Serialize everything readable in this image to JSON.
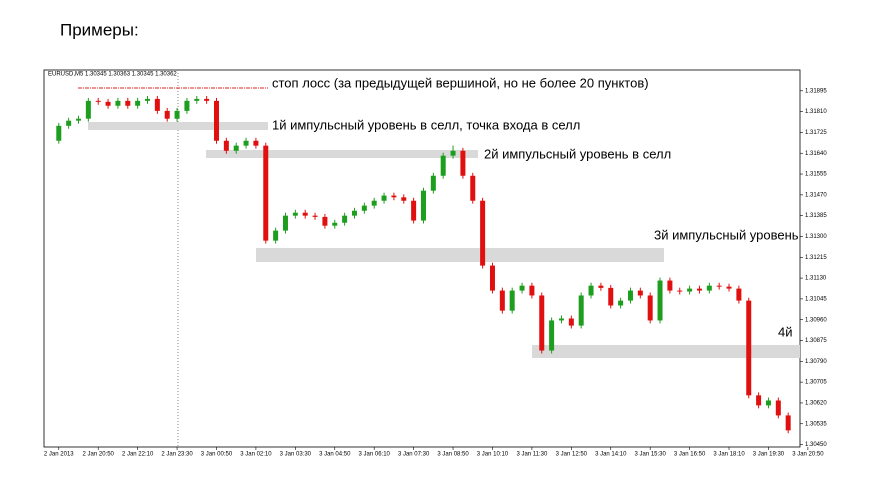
{
  "heading": "Примеры:",
  "chart_data": {
    "type": "candlestick",
    "symbol_label": "EURUSD,M5  1.30345 1.30363 1.30345 1.30362",
    "annotations": [
      "стоп лосс (за предыдущей вершиной, но не более 20 пунктов)",
      "1й импульсный уровень в селл, точка входа в селл",
      "2й импульсный уровень в селл",
      "3й импульсный уровень",
      "4й"
    ],
    "up_color": "#1e9e1e",
    "down_color": "#e01010",
    "xlim": [
      -1.5,
      75.2
    ],
    "xticks": [
      {
        "value": 0,
        "label": "2 Jan 2013"
      },
      {
        "value": 4,
        "label": "2 Jan 20:50"
      },
      {
        "value": 8,
        "label": "2 Jan 22:10"
      },
      {
        "value": 12,
        "label": "2 Jan 23:30"
      },
      {
        "value": 16,
        "label": "3 Jan 00:50"
      },
      {
        "value": 20,
        "label": "3 Jan 02:10"
      },
      {
        "value": 24,
        "label": "3 Jan 03:30"
      },
      {
        "value": 28,
        "label": "3 Jan 04:50"
      },
      {
        "value": 32,
        "label": "3 Jan 06:10"
      },
      {
        "value": 36,
        "label": "3 Jan 07:30"
      },
      {
        "value": 40,
        "label": "3 Jan 08:50"
      },
      {
        "value": 44,
        "label": "3 Jan 10:10"
      },
      {
        "value": 48,
        "label": "3 Jan 11:30"
      },
      {
        "value": 52,
        "label": "3 Jan 12:50"
      },
      {
        "value": 56,
        "label": "3 Jan 14:10"
      },
      {
        "value": 60,
        "label": "3 Jan 15:30"
      },
      {
        "value": 64,
        "label": "3 Jan 16:50"
      },
      {
        "value": 68,
        "label": "3 Jan 18:10"
      },
      {
        "value": 72,
        "label": "3 Jan 19:30"
      },
      {
        "value": 76,
        "label": "3 Jan 20:50"
      }
    ],
    "ylim": [
      1.3044,
      1.3198
    ],
    "yticks": [
      1.31895,
      {
        "value": 1.3181,
        "label": "1.31810"
      },
      1.31725,
      {
        "value": 1.3164,
        "label": "1.31640"
      },
      1.31555,
      {
        "value": 1.3147,
        "label": "1.31470"
      },
      1.31385,
      {
        "value": 1.313,
        "label": "1.31300"
      },
      1.31215,
      {
        "value": 1.3113,
        "label": "1.31130"
      },
      1.31045,
      {
        "value": 1.3096,
        "label": "1.30960"
      },
      1.30875,
      {
        "value": 1.3079,
        "label": "1.30790"
      },
      1.30705,
      {
        "value": 1.3062,
        "label": "1.30620"
      },
      1.30535,
      {
        "value": 1.3045,
        "label": "1.30450"
      }
    ],
    "open": [
      1.31691,
      1.31752,
      1.31773,
      1.31781,
      1.31854,
      1.3185,
      1.31834,
      1.31854,
      1.31834,
      1.31854,
      1.31862,
      1.31813,
      1.31781,
      1.31813,
      1.31854,
      1.31862,
      1.31854,
      1.31691,
      1.3165,
      1.31671,
      1.31691,
      1.31671,
      1.31283,
      1.31324,
      1.31385,
      1.31397,
      1.31385,
      1.3138,
      1.31344,
      1.31356,
      1.31385,
      1.31405,
      1.31426,
      1.31446,
      1.31467,
      1.3146,
      1.31446,
      1.31365,
      1.31487,
      1.31548,
      1.3163,
      1.3165,
      1.31548,
      1.31446,
      1.31181,
      1.31079,
      1.30997,
      1.31079,
      1.31099,
      1.31059,
      1.30834,
      1.30957,
      1.30965,
      1.30936,
      1.31059,
      1.31099,
      1.3109,
      1.31018,
      1.31038,
      1.31079,
      1.31059,
      1.30957,
      1.3112,
      1.31079,
      1.31075,
      1.31087,
      1.31079,
      1.31099,
      1.31095,
      1.31087,
      1.31038,
      1.30651,
      1.3061,
      1.3063,
      1.30569
    ],
    "high": [
      1.31764,
      1.31785,
      1.31793,
      1.31866,
      1.31866,
      1.31862,
      1.31866,
      1.31866,
      1.31866,
      1.31874,
      1.31874,
      1.31825,
      1.31825,
      1.31866,
      1.31874,
      1.31874,
      1.31866,
      1.31703,
      1.31683,
      1.31703,
      1.31703,
      1.31683,
      1.31336,
      1.31397,
      1.31409,
      1.31409,
      1.31397,
      1.31392,
      1.31368,
      1.31397,
      1.31417,
      1.31438,
      1.31458,
      1.31479,
      1.31479,
      1.31472,
      1.31458,
      1.31499,
      1.3156,
      1.31642,
      1.31671,
      1.31662,
      1.3156,
      1.31458,
      1.31193,
      1.31091,
      1.31091,
      1.31111,
      1.31111,
      1.31071,
      1.30969,
      1.30977,
      1.30977,
      1.31071,
      1.31111,
      1.31111,
      1.31102,
      1.3105,
      1.31091,
      1.31091,
      1.31071,
      1.31132,
      1.31132,
      1.31091,
      1.31099,
      1.31099,
      1.31111,
      1.31111,
      1.31107,
      1.31099,
      1.3105,
      1.30663,
      1.30642,
      1.30642,
      1.30581
    ],
    "low": [
      1.31679,
      1.3174,
      1.31761,
      1.31769,
      1.31838,
      1.31822,
      1.31822,
      1.31822,
      1.31822,
      1.31842,
      1.31801,
      1.31769,
      1.31769,
      1.31801,
      1.31842,
      1.31842,
      1.31679,
      1.31638,
      1.31638,
      1.31659,
      1.31659,
      1.31271,
      1.31271,
      1.31312,
      1.31373,
      1.31373,
      1.31368,
      1.31332,
      1.31332,
      1.31344,
      1.31373,
      1.31393,
      1.31414,
      1.31434,
      1.31448,
      1.31434,
      1.31353,
      1.31353,
      1.31475,
      1.31536,
      1.31618,
      1.31536,
      1.31434,
      1.31169,
      1.31067,
      1.30985,
      1.30985,
      1.31067,
      1.31047,
      1.30822,
      1.30822,
      1.30945,
      1.30924,
      1.30924,
      1.31047,
      1.31078,
      1.31006,
      1.31006,
      1.31026,
      1.31047,
      1.30945,
      1.30945,
      1.31067,
      1.31063,
      1.31063,
      1.31067,
      1.31067,
      1.31083,
      1.31075,
      1.31026,
      1.30639,
      1.30598,
      1.30598,
      1.30557,
      1.30496
    ],
    "close": [
      1.31752,
      1.31773,
      1.31781,
      1.31854,
      1.3185,
      1.31834,
      1.31854,
      1.31834,
      1.31854,
      1.31862,
      1.31813,
      1.31781,
      1.31813,
      1.31854,
      1.31862,
      1.31854,
      1.31691,
      1.3165,
      1.31671,
      1.31691,
      1.31671,
      1.31283,
      1.31324,
      1.31385,
      1.31397,
      1.31385,
      1.3138,
      1.31344,
      1.31356,
      1.31385,
      1.31405,
      1.31426,
      1.31446,
      1.31467,
      1.3146,
      1.31446,
      1.31365,
      1.31487,
      1.31548,
      1.3163,
      1.3165,
      1.31548,
      1.31446,
      1.31181,
      1.31079,
      1.30997,
      1.31079,
      1.31099,
      1.31059,
      1.30834,
      1.30957,
      1.30965,
      1.30936,
      1.31059,
      1.31099,
      1.3109,
      1.31018,
      1.31038,
      1.31079,
      1.31059,
      1.30957,
      1.3112,
      1.31079,
      1.31075,
      1.31087,
      1.31079,
      1.31099,
      1.31095,
      1.31087,
      1.31038,
      1.30651,
      1.3061,
      1.3063,
      1.30569,
      1.30508
    ]
  }
}
